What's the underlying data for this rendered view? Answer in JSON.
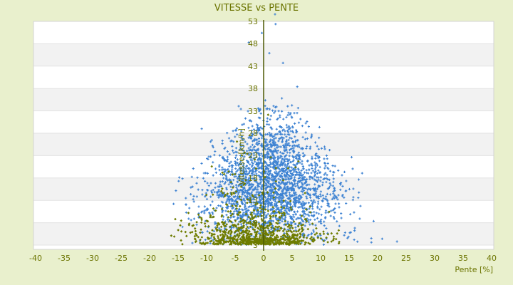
{
  "chart": {
    "title": "VITESSE vs PENTE",
    "x_axis_label": "Pente [%]",
    "y_axis_label": "Vitesse [km/h]",
    "colors": {
      "background": "#e9f0cd",
      "band_light": "#ffffff",
      "band_dark": "#f2f2f2",
      "band_line": "#e3e3e3",
      "plot_border": "#d4d4d4",
      "axis_spine": "#4d5903",
      "text": "#6b7400",
      "series_blue": "#3d82d2",
      "series_olive": "#6e7c00"
    }
  },
  "chart_data": {
    "type": "scatter",
    "title": "VITESSE vs PENTE",
    "xlabel": "Pente [%]",
    "ylabel": "Vitesse [km/h]",
    "xlim": [
      -40,
      40
    ],
    "ylim": [
      3,
      53
    ],
    "x_ticks": [
      -40,
      -35,
      -30,
      -25,
      -20,
      -15,
      -10,
      -5,
      0,
      5,
      10,
      15,
      20,
      25,
      30,
      35,
      40
    ],
    "y_ticks": [
      53,
      48,
      43,
      38,
      33,
      28,
      23,
      18,
      13,
      8,
      3
    ],
    "grid": "horizontal-alternating-bands",
    "legend": "none",
    "zero_spine": true,
    "seed": 42,
    "series": [
      {
        "name": "vitesse-cloud",
        "color": "#3d82d2",
        "marker": "plus",
        "clusters": [
          {
            "count": 2300,
            "v_mode": "normal",
            "v_p1": 15.5,
            "v_p2": 6.3,
            "v_min": 3.1,
            "v_max": 36,
            "p_mean": 1.2,
            "p_sigma_base": 7.2,
            "p_sigma_per_v": -0.1,
            "p_sigma_min": 2.6,
            "p_min": -17,
            "p_max": 24
          },
          {
            "count": 150,
            "v_mode": "halfnormal",
            "v_p1": 24,
            "v_p2": 6,
            "v_min": 24,
            "v_max": 47,
            "p_mean": 2.2,
            "p_sigma_base": 2.9,
            "p_sigma_per_v": 0,
            "p_sigma_min": 2.9,
            "p_min": -6,
            "p_max": 10
          }
        ],
        "outliers": [
          [
            2.0,
            54.6
          ],
          [
            2.1,
            52.4
          ],
          [
            -0.3,
            50.4
          ],
          [
            -2.6,
            48.3
          ],
          [
            1.0,
            45.9
          ],
          [
            3.4,
            43.7
          ],
          [
            5.9,
            38.4
          ],
          [
            23.4,
            3.8
          ],
          [
            20.8,
            4.4
          ],
          [
            18.9,
            3.6
          ],
          [
            16.0,
            6.8
          ],
          [
            15.2,
            9.9
          ],
          [
            -15.8,
            12.2
          ],
          [
            -14.9,
            17.3
          ]
        ]
      },
      {
        "name": "pente-low-speed-cloud",
        "color": "#6e7c00",
        "marker": "diamond",
        "clusters": [
          {
            "count": 620,
            "v_mode": "halfnormal",
            "v_p1": 3.15,
            "v_p2": 3.4,
            "v_min": 3.1,
            "v_max": 15,
            "p_mean": -1.8,
            "p_sigma_base": 5.8,
            "p_sigma_per_v": 0,
            "p_sigma_min": 5.8,
            "p_min": -16.5,
            "p_max": 13.5
          },
          {
            "count": 210,
            "v_mode": "uniform",
            "v_p1": 3.1,
            "v_p2": 4.4,
            "v_min": 3.1,
            "v_max": 4.4,
            "p_mean": 0.5,
            "p_sigma_base": 3.6,
            "p_sigma_per_v": 0,
            "p_sigma_min": 3.6,
            "p_min": -11,
            "p_max": 11
          },
          {
            "count": 85,
            "v_mode": "halfnormal",
            "v_p1": 9,
            "v_p2": 7.5,
            "v_min": 9,
            "v_max": 34,
            "p_mean": -2.0,
            "p_sigma_base": 4.8,
            "p_sigma_per_v": 0,
            "p_sigma_min": 4.8,
            "p_min": -13,
            "p_max": 8
          }
        ],
        "outliers": [
          [
            -16.2,
            5.1
          ],
          [
            12.9,
            5.6
          ],
          [
            13.2,
            3.4
          ],
          [
            -15.5,
            8.8
          ]
        ]
      }
    ]
  }
}
